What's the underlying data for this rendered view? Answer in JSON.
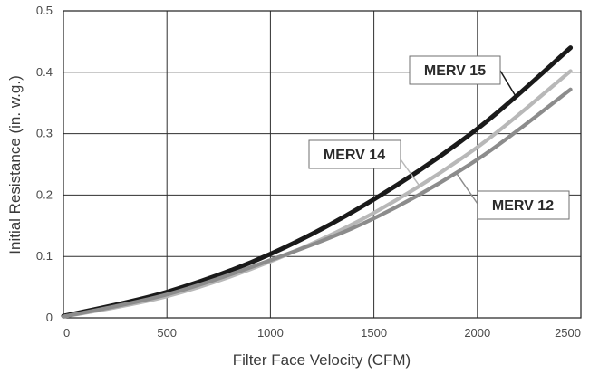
{
  "chart_data": {
    "type": "line",
    "title": "",
    "xlabel": "Filter Face Velocity (CFM)",
    "ylabel": "Initial Resistance (in. w.g.)",
    "xlim": [
      0,
      2500
    ],
    "ylim": [
      0,
      0.5
    ],
    "x_ticks": [
      0,
      500,
      1000,
      1500,
      2000,
      2500
    ],
    "x_tick_labels": [
      "0",
      "500",
      "1000",
      "1500",
      "2000",
      "2500"
    ],
    "y_ticks": [
      0,
      0.1,
      0.2,
      0.3,
      0.4,
      0.5
    ],
    "y_tick_labels": [
      "0",
      "0.1",
      "0.2",
      "0.3",
      "0.4",
      "0.5"
    ],
    "grid": true,
    "legend": "inline labels",
    "series": [
      {
        "name": "MERV 15",
        "color": "#1a1a1a",
        "x": [
          0,
          500,
          1000,
          1500,
          2000,
          2450
        ],
        "y": [
          0.003,
          0.042,
          0.104,
          0.193,
          0.308,
          0.44
        ],
        "label_anchor_x": 2190,
        "label_anchor_y": 0.358
      },
      {
        "name": "MERV 14",
        "color": "#b8b8b8",
        "x": [
          0,
          500,
          1000,
          1500,
          2000,
          2450
        ],
        "y": [
          0.002,
          0.035,
          0.092,
          0.171,
          0.278,
          0.402
        ],
        "label_anchor_x": 1720,
        "label_anchor_y": 0.215
      },
      {
        "name": "MERV 12",
        "color": "#8c8c8c",
        "x": [
          0,
          500,
          1000,
          1500,
          2000,
          2450
        ],
        "y": [
          0.002,
          0.038,
          0.094,
          0.162,
          0.258,
          0.372
        ],
        "label_anchor_x": 1900,
        "label_anchor_y": 0.235
      }
    ]
  }
}
